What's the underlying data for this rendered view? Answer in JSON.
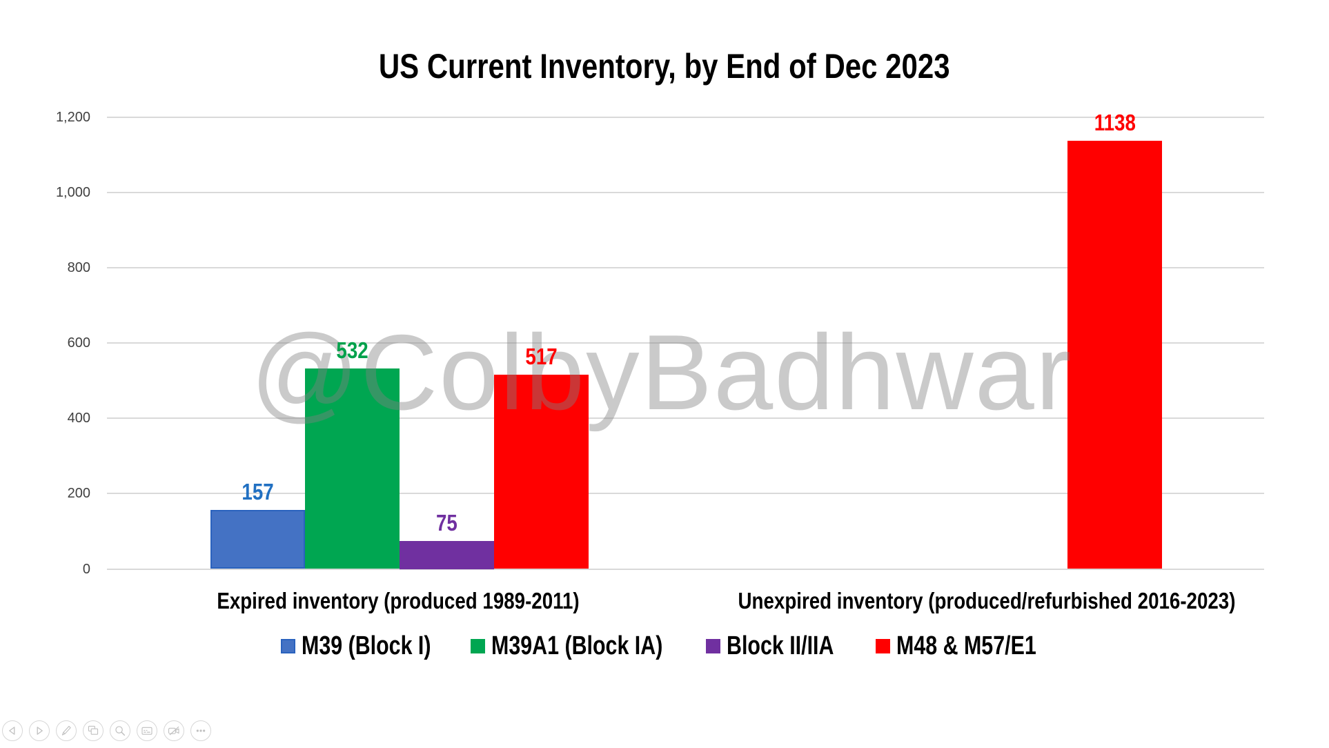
{
  "title": "US Current Inventory, by End of Dec 2023",
  "watermark": "@ColbyBadhwar",
  "chart_data": {
    "type": "bar",
    "title": "US Current Inventory, by End of Dec 2023",
    "categories": [
      "Expired inventory (produced 1989-2011)",
      "Unexpired inventory (produced/refurbished 2016-2023)"
    ],
    "series": [
      {
        "name": "M39 (Block I)",
        "values": [
          157,
          null
        ],
        "fill": "#4472C4",
        "border": "#2A62BE",
        "label_color": "#2170C2"
      },
      {
        "name": "M39A1 (Block IA)",
        "values": [
          532,
          null
        ],
        "fill": "#00A651",
        "border": null,
        "label_color": "#00A14B"
      },
      {
        "name": "Block II/IIA",
        "values": [
          75,
          null
        ],
        "fill": "#7030A0",
        "border": null,
        "label_color": "#7030A0"
      },
      {
        "name": "M48 & M57/E1",
        "values": [
          517,
          1138
        ],
        "fill": "#FF0000",
        "border": null,
        "label_color": "#FF0000"
      }
    ],
    "ylim": [
      0,
      1200
    ],
    "ytick_step": 200,
    "ytick_labels": [
      "0",
      "200",
      "400",
      "600",
      "800",
      "1,000",
      "1,200"
    ],
    "grid": true,
    "gridline_color": "#D9D9D9",
    "axis_label_color": "#404040",
    "legend_position": "bottom"
  },
  "toolbar": {
    "buttons": [
      {
        "icon": "previous-slide"
      },
      {
        "icon": "next-slide"
      },
      {
        "icon": "pen"
      },
      {
        "icon": "see-all-slides"
      },
      {
        "icon": "zoom"
      },
      {
        "icon": "captions"
      },
      {
        "icon": "camera-off"
      },
      {
        "icon": "more-options"
      }
    ]
  }
}
